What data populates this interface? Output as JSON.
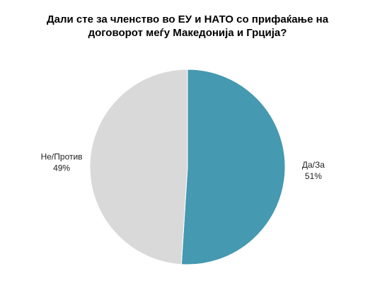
{
  "chart_data": {
    "type": "pie",
    "title": "Дали сте за членство во ЕУ и НАТО со прифаќање на договорот меѓу Македонија и Грција?",
    "categories": [
      "Да/За",
      "Не/Против"
    ],
    "values": [
      51,
      49
    ],
    "value_labels": [
      "51%",
      "49%"
    ],
    "colors": [
      "#4599b0",
      "#d9d9d9"
    ]
  }
}
